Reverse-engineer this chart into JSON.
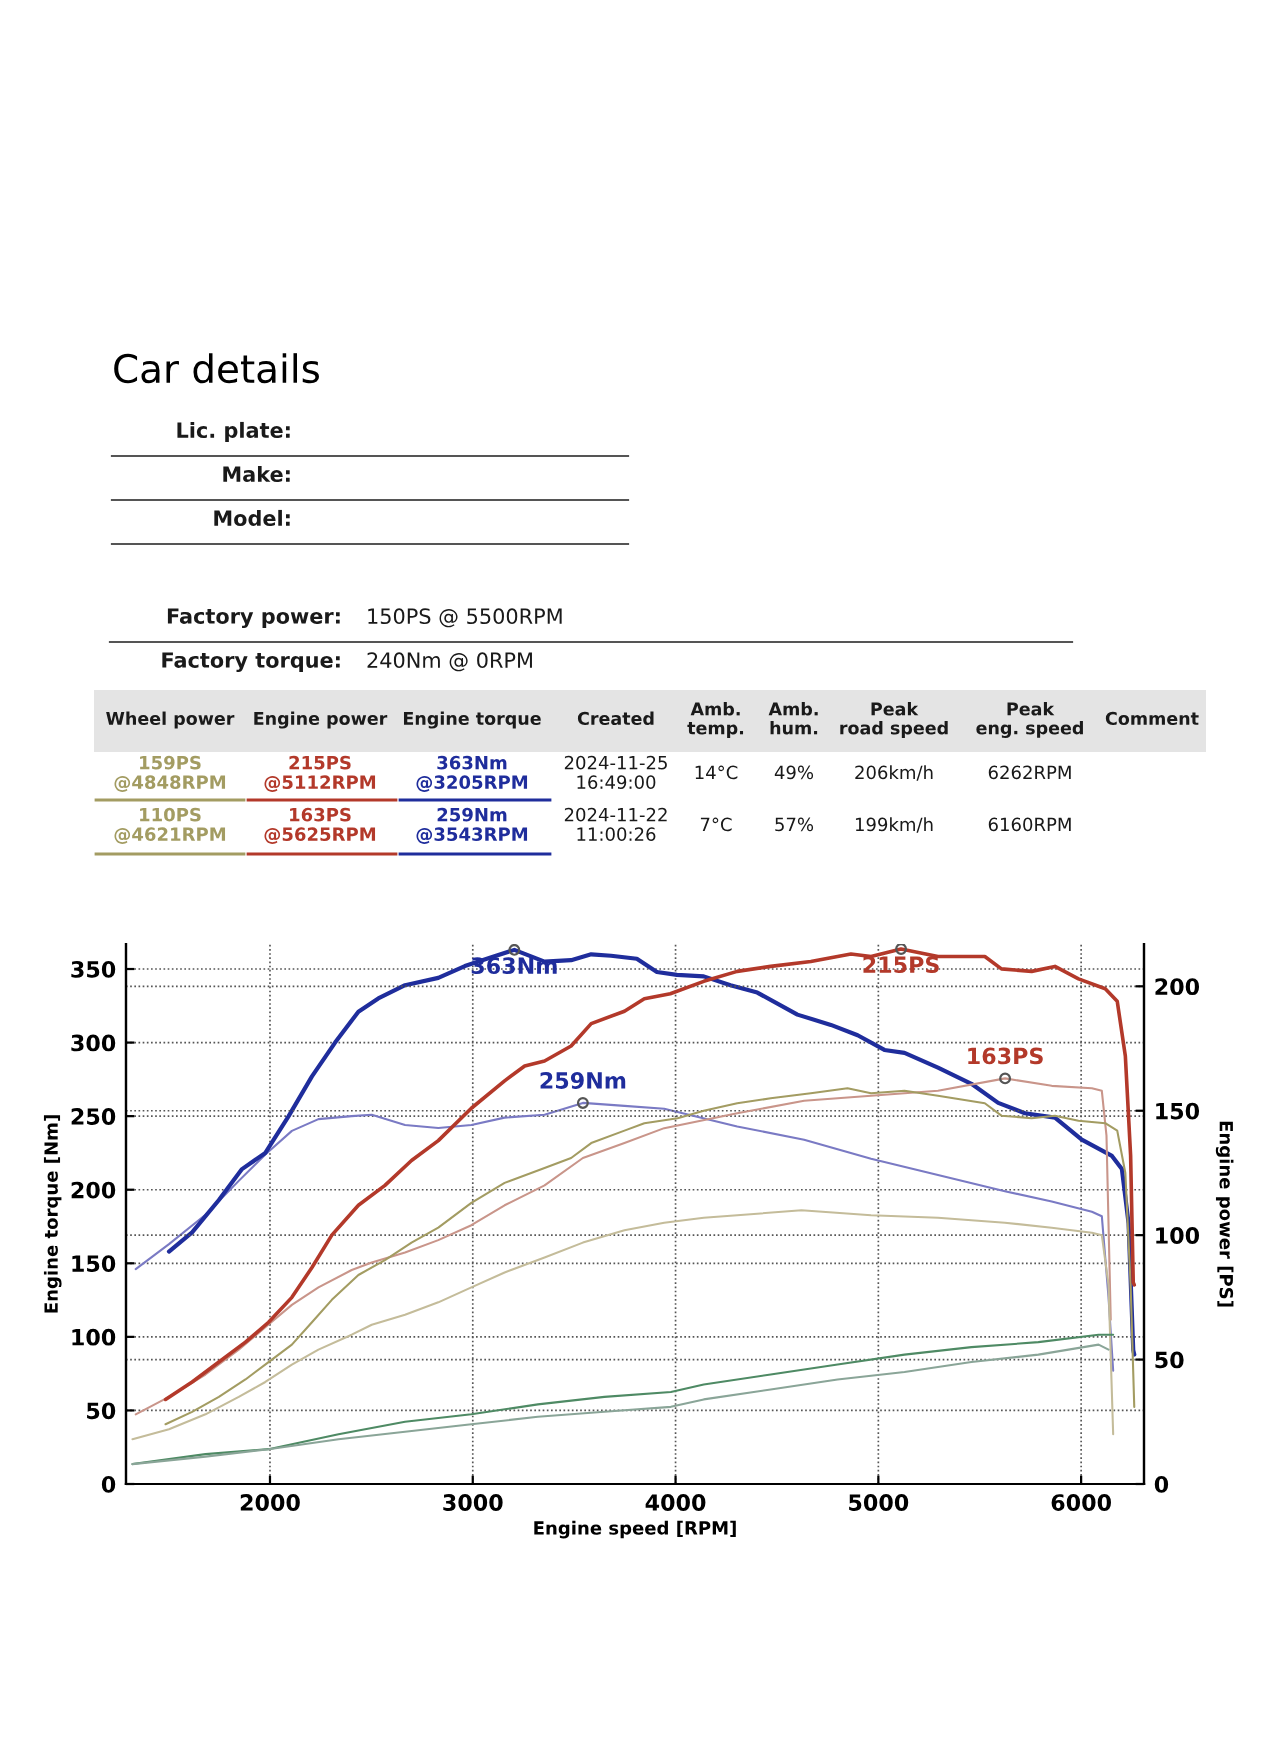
{
  "chart_data": {
    "type": "line",
    "title": "Car details",
    "xlabel": "Engine speed [RPM]",
    "ylabel": "Engine torque [Nm]",
    "y2label": "Engine power [PS]",
    "xlim": [
      1290,
      6310
    ],
    "xticks": [
      2000,
      3000,
      4000,
      5000,
      6000
    ],
    "ylim": [
      0,
      367
    ],
    "yticks": [
      0,
      50,
      100,
      150,
      200,
      250,
      300,
      350
    ],
    "y2lim": [
      0,
      217
    ],
    "y2ticks": [
      0,
      50,
      100,
      150,
      200
    ],
    "grid": true,
    "annotations": [
      "Lic. plate:",
      "Make:",
      "Model:",
      "Factory power:",
      "150PS @ 5500RPM",
      "Factory torque:",
      "240Nm @ 0RPM",
      "Wheel power",
      "Engine power",
      "Engine torque",
      "Created",
      "Amb.\ntemp.",
      "Amb.\nhum.",
      "Peak\nroad speed",
      "Peak\neng. speed",
      "Comment",
      "159PS\n@4848RPM",
      "215PS\n@5112RPM",
      "363Nm\n@3205RPM",
      "2024-11-25\n16:49:00",
      "14°C",
      "49%",
      "206km/h",
      "6262RPM",
      "110PS\n@4621RPM",
      "163PS\n@5625RPM",
      "259Nm\n@3543RPM",
      "2024-11-22\n11:00:26",
      "7°C",
      "57%",
      "199km/h",
      "6160RPM"
    ],
    "series": [
      {
        "color": "#1f2d9c",
        "x": [
          1502,
          1616,
          1748,
          1862,
          1977,
          2092,
          2207,
          2321,
          2436,
          2534,
          2666,
          2830,
          2961,
          3092,
          3205,
          3354,
          3485,
          3584,
          3682,
          3809,
          3908,
          4007,
          4139,
          4271,
          4403,
          4601,
          4766,
          4898,
          5030,
          5129,
          5294,
          5459,
          5591,
          5723,
          5871,
          6003,
          6152,
          6201,
          6234,
          6257,
          6262
        ],
        "values": [
          158,
          171,
          193,
          214,
          225,
          250,
          277,
          300,
          321,
          330,
          339,
          344,
          352,
          358,
          363,
          355,
          356,
          360,
          359,
          357,
          348,
          346,
          345,
          339,
          334,
          319,
          312,
          305,
          295,
          293,
          283,
          272,
          259,
          252,
          249,
          234,
          223,
          214,
          177,
          91,
          88
        ],
        "value_labels": [
          null,
          null,
          null,
          null,
          null,
          null,
          null,
          null,
          null,
          null,
          null,
          null,
          null,
          null,
          "363Nm",
          null,
          null,
          null,
          null,
          null,
          null,
          null,
          null,
          null,
          null,
          null,
          null,
          null,
          null,
          null,
          null,
          null,
          null,
          null,
          null,
          null,
          null,
          null,
          null,
          null,
          null
        ]
      },
      {
        "color": "#7a7ac4",
        "x": [
          1338,
          1502,
          1682,
          1846,
          1977,
          2108,
          2239,
          2403,
          2502,
          2666,
          2830,
          2993,
          3157,
          3354,
          3543,
          3748,
          3944,
          4304,
          4634,
          4964,
          5294,
          5624,
          5855,
          6053,
          6102,
          6135,
          6158
        ],
        "values": [
          146,
          163,
          183,
          206,
          224,
          240,
          248,
          250,
          251,
          244,
          242,
          244,
          249,
          251,
          259,
          257,
          255,
          243,
          234,
          221,
          210,
          199,
          192,
          185,
          182,
          127,
          77
        ],
        "value_labels": [
          null,
          null,
          null,
          null,
          null,
          null,
          null,
          null,
          null,
          null,
          null,
          null,
          null,
          null,
          "259Nm",
          null,
          null,
          null,
          null,
          null,
          null,
          null,
          null,
          null,
          null,
          null,
          null
        ]
      },
      {
        "color": "#b3392a",
        "axis": "y2",
        "x": [
          1485,
          1616,
          1748,
          1879,
          1993,
          2108,
          2207,
          2305,
          2436,
          2567,
          2698,
          2830,
          2993,
          3157,
          3256,
          3354,
          3485,
          3584,
          3748,
          3846,
          3974,
          4139,
          4304,
          4469,
          4667,
          4865,
          4964,
          5112,
          5294,
          5525,
          5607,
          5756,
          5871,
          5987,
          6119,
          6178,
          6218,
          6244,
          6257,
          6262
        ],
        "values": [
          34,
          41,
          49,
          57,
          65,
          75,
          87,
          100,
          112,
          120,
          130,
          138,
          151,
          162,
          168,
          170,
          176,
          185,
          190,
          195,
          197,
          202,
          206,
          208,
          210,
          213,
          212,
          215,
          212,
          212,
          207,
          206,
          208,
          203,
          199,
          194,
          172,
          132,
          81,
          80
        ],
        "value_labels": [
          null,
          null,
          null,
          null,
          null,
          null,
          null,
          null,
          null,
          null,
          null,
          null,
          null,
          null,
          null,
          null,
          null,
          null,
          null,
          null,
          null,
          null,
          null,
          null,
          null,
          null,
          null,
          "215PS",
          null,
          null,
          null,
          null,
          null,
          null,
          null,
          null,
          null,
          null,
          null,
          null
        ]
      },
      {
        "color": "#c9958a",
        "axis": "y2",
        "x": [
          1338,
          1502,
          1682,
          1846,
          1977,
          2108,
          2239,
          2403,
          2502,
          2666,
          2830,
          2993,
          3157,
          3354,
          3543,
          3748,
          3944,
          4304,
          4634,
          4964,
          5294,
          5625,
          5855,
          6053,
          6102,
          6125,
          6146
        ],
        "values": [
          28,
          35,
          44,
          54,
          63,
          72,
          79,
          86,
          89,
          93,
          98,
          104,
          112,
          120,
          131,
          137,
          143,
          149,
          154,
          156,
          158,
          163,
          160,
          159,
          158,
          140,
          66
        ],
        "value_labels": [
          null,
          null,
          null,
          null,
          null,
          null,
          null,
          null,
          null,
          null,
          null,
          null,
          null,
          null,
          null,
          null,
          null,
          null,
          null,
          null,
          null,
          "163PS",
          null,
          null,
          null,
          null,
          null
        ]
      },
      {
        "color": "#a39c62",
        "axis": "y2",
        "x": [
          1485,
          1616,
          1748,
          1879,
          1993,
          2108,
          2207,
          2305,
          2436,
          2567,
          2698,
          2830,
          2993,
          3157,
          3354,
          3485,
          3584,
          3748,
          3846,
          4010,
          4139,
          4304,
          4469,
          4667,
          4848,
          4964,
          5129,
          5294,
          5525,
          5607,
          5756,
          5871,
          5987,
          6119,
          6178,
          6218,
          6244,
          6262
        ],
        "values": [
          24,
          29,
          35,
          42,
          49,
          56,
          65,
          74,
          84,
          90,
          97,
          103,
          113,
          121,
          127,
          131,
          137,
          142,
          145,
          147,
          150,
          153,
          155,
          157,
          159,
          157,
          158,
          156,
          153,
          148,
          147,
          148,
          146,
          145,
          142,
          125,
          80,
          31
        ]
      },
      {
        "color": "#c4bc9a",
        "axis": "y2",
        "x": [
          1322,
          1502,
          1682,
          1846,
          1977,
          2108,
          2239,
          2403,
          2502,
          2666,
          2830,
          2993,
          3157,
          3354,
          3543,
          3748,
          3944,
          4139,
          4304,
          4621,
          4964,
          5294,
          5624,
          5855,
          6053,
          6102,
          6135,
          6158
        ],
        "values": [
          18,
          22,
          28,
          35,
          41,
          48,
          54,
          60,
          64,
          68,
          73,
          79,
          85,
          91,
          97,
          102,
          105,
          107,
          108,
          110,
          108,
          107,
          105,
          103,
          101,
          100,
          80,
          20
        ]
      },
      {
        "color": "#4e8a64",
        "axis": "y2",
        "x": [
          1322,
          1682,
          1993,
          2338,
          2666,
          2993,
          3321,
          3649,
          3977,
          4139,
          4469,
          4799,
          5129,
          5459,
          5789,
          6086,
          6158
        ],
        "values": [
          8,
          12,
          14,
          20,
          25,
          28,
          32,
          35,
          37,
          40,
          44,
          48,
          52,
          55,
          57,
          60,
          60
        ]
      },
      {
        "color": "#8aa598",
        "axis": "y2",
        "x": [
          1322,
          1682,
          1993,
          2338,
          2666,
          2993,
          3321,
          3649,
          3977,
          4139,
          4469,
          4799,
          5129,
          5459,
          5789,
          6086,
          6135
        ],
        "values": [
          8,
          11,
          14,
          18,
          21,
          24,
          27,
          29,
          31,
          34,
          38,
          42,
          45,
          49,
          52,
          56,
          54
        ]
      }
    ]
  }
}
